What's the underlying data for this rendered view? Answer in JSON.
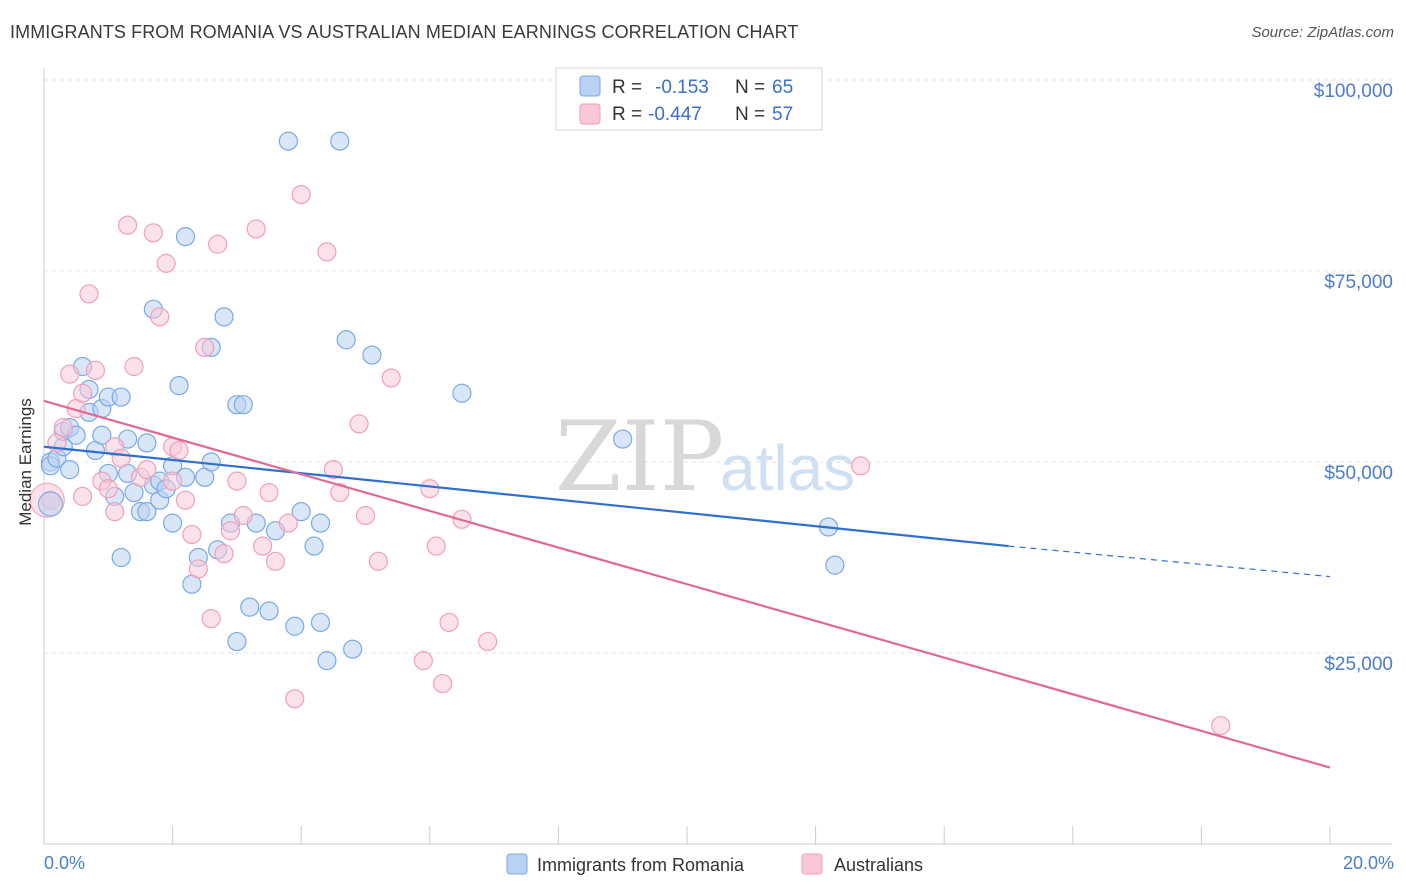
{
  "title": "IMMIGRANTS FROM ROMANIA VS AUSTRALIAN MEDIAN EARNINGS CORRELATION CHART",
  "source": "Source: ZipAtlas.com",
  "watermark": {
    "zip": "ZIP",
    "atlas": "atlas"
  },
  "chart_data": {
    "type": "scatter",
    "ylabel": "Median Earnings",
    "xlim": [
      0,
      20
    ],
    "ylim": [
      0,
      105000
    ],
    "x_tick_labels": {
      "min": "0.0%",
      "max": "20.0%"
    },
    "y_ticks": [
      {
        "value": 25000,
        "label": "$25,000"
      },
      {
        "value": 50000,
        "label": "$50,000"
      },
      {
        "value": 75000,
        "label": "$75,000"
      },
      {
        "value": 100000,
        "label": "$100,000"
      }
    ],
    "legend": {
      "r_label": "R =",
      "n_label": "N =",
      "entries": [
        {
          "r": "-0.153",
          "n": "65"
        },
        {
          "r": "-0.447",
          "n": "57"
        }
      ]
    },
    "series": [
      {
        "name": "Immigrants from Romania",
        "color": "#7aa9e6",
        "fill": "#b9d2f3",
        "trend_color": "#2f6fd0",
        "trend": {
          "x0": 0,
          "y0": 52000,
          "x1": 15,
          "y1": 39000,
          "dash_to_x": 20,
          "dash_to_y": 35000
        },
        "points": [
          [
            0.1,
            50000
          ],
          [
            0.1,
            49500
          ],
          [
            0.2,
            50500
          ],
          [
            0.3,
            52000
          ],
          [
            0.3,
            54000
          ],
          [
            0.4,
            54500
          ],
          [
            0.4,
            49000
          ],
          [
            0.5,
            53500
          ],
          [
            0.6,
            62500
          ],
          [
            0.7,
            59500
          ],
          [
            0.7,
            56500
          ],
          [
            0.8,
            51500
          ],
          [
            0.9,
            57000
          ],
          [
            0.9,
            53500
          ],
          [
            1.0,
            58500
          ],
          [
            1.0,
            48500
          ],
          [
            1.1,
            45500
          ],
          [
            1.2,
            58500
          ],
          [
            1.2,
            37500
          ],
          [
            1.3,
            53000
          ],
          [
            1.3,
            48500
          ],
          [
            1.4,
            46000
          ],
          [
            1.5,
            43500
          ],
          [
            1.6,
            43500
          ],
          [
            1.6,
            52500
          ],
          [
            1.7,
            47000
          ],
          [
            1.7,
            70000
          ],
          [
            1.8,
            47500
          ],
          [
            1.8,
            45000
          ],
          [
            1.9,
            46500
          ],
          [
            2.0,
            49500
          ],
          [
            2.0,
            42000
          ],
          [
            2.1,
            60000
          ],
          [
            2.2,
            79500
          ],
          [
            2.2,
            48000
          ],
          [
            2.3,
            34000
          ],
          [
            2.4,
            37500
          ],
          [
            2.5,
            48000
          ],
          [
            2.6,
            65000
          ],
          [
            2.6,
            50000
          ],
          [
            2.7,
            38500
          ],
          [
            2.8,
            69000
          ],
          [
            2.9,
            42000
          ],
          [
            3.0,
            26500
          ],
          [
            3.0,
            57500
          ],
          [
            3.1,
            57500
          ],
          [
            3.2,
            31000
          ],
          [
            3.3,
            42000
          ],
          [
            3.5,
            30500
          ],
          [
            3.6,
            41000
          ],
          [
            3.8,
            92000
          ],
          [
            3.9,
            28500
          ],
          [
            4.0,
            43500
          ],
          [
            4.2,
            39000
          ],
          [
            4.3,
            29000
          ],
          [
            4.3,
            42000
          ],
          [
            4.4,
            24000
          ],
          [
            4.6,
            92000
          ],
          [
            4.7,
            66000
          ],
          [
            4.8,
            25500
          ],
          [
            5.1,
            64000
          ],
          [
            6.5,
            59000
          ],
          [
            9.0,
            53000
          ],
          [
            12.2,
            41500
          ],
          [
            12.3,
            36500
          ]
        ]
      },
      {
        "name": "Australians",
        "color": "#f0a0ba",
        "fill": "#f8c8d7",
        "trend_color": "#e06a96",
        "trend": {
          "x0": 0,
          "y0": 58000,
          "x1": 20,
          "y1": 10000
        },
        "points": [
          [
            0.1,
            45000
          ],
          [
            0.2,
            52500
          ],
          [
            0.4,
            61500
          ],
          [
            0.5,
            57000
          ],
          [
            0.6,
            59000
          ],
          [
            0.7,
            72000
          ],
          [
            0.8,
            62000
          ],
          [
            0.9,
            47500
          ],
          [
            1.0,
            46500
          ],
          [
            1.1,
            52000
          ],
          [
            1.2,
            50500
          ],
          [
            1.3,
            81000
          ],
          [
            1.4,
            62500
          ],
          [
            1.5,
            48000
          ],
          [
            1.6,
            49000
          ],
          [
            1.7,
            80000
          ],
          [
            1.8,
            69000
          ],
          [
            1.9,
            76000
          ],
          [
            2.0,
            47500
          ],
          [
            2.0,
            52000
          ],
          [
            2.1,
            51500
          ],
          [
            2.2,
            45000
          ],
          [
            2.3,
            40500
          ],
          [
            2.4,
            36000
          ],
          [
            2.5,
            65000
          ],
          [
            2.6,
            29500
          ],
          [
            2.7,
            78500
          ],
          [
            2.8,
            38000
          ],
          [
            2.9,
            41000
          ],
          [
            3.0,
            47500
          ],
          [
            3.1,
            43000
          ],
          [
            3.3,
            80500
          ],
          [
            3.4,
            39000
          ],
          [
            3.5,
            46000
          ],
          [
            3.6,
            37000
          ],
          [
            3.8,
            42000
          ],
          [
            3.9,
            19000
          ],
          [
            4.0,
            85000
          ],
          [
            4.4,
            77500
          ],
          [
            4.5,
            49000
          ],
          [
            4.6,
            46000
          ],
          [
            4.9,
            55000
          ],
          [
            5.0,
            43000
          ],
          [
            5.2,
            37000
          ],
          [
            5.4,
            61000
          ],
          [
            5.9,
            24000
          ],
          [
            6.0,
            46500
          ],
          [
            6.1,
            39000
          ],
          [
            6.2,
            21000
          ],
          [
            6.3,
            29000
          ],
          [
            6.5,
            42500
          ],
          [
            6.9,
            26500
          ],
          [
            12.7,
            49500
          ],
          [
            18.3,
            15500
          ],
          [
            0.3,
            54500
          ],
          [
            0.6,
            45500
          ],
          [
            1.1,
            43500
          ]
        ]
      }
    ]
  }
}
